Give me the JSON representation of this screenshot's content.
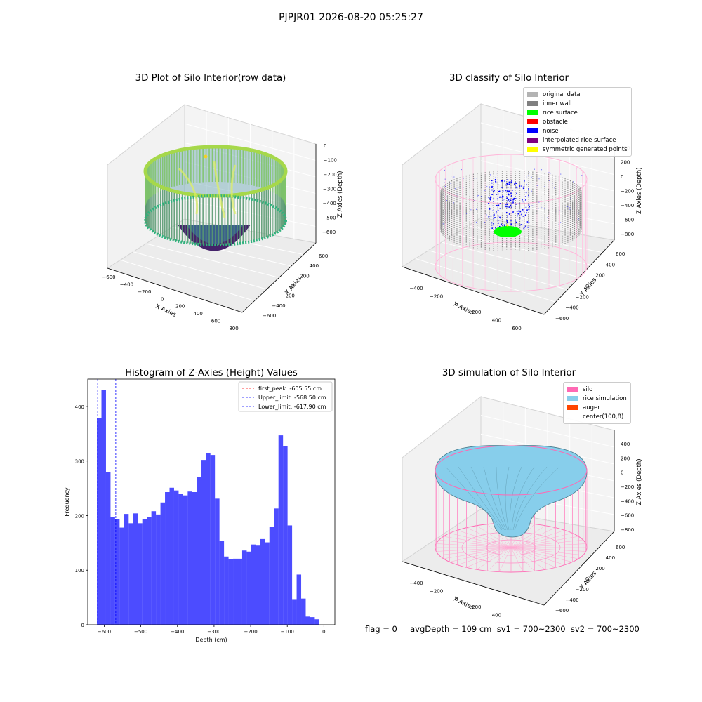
{
  "suptitle": "PJPJR01 2026-08-20 05:25:27",
  "footer": "flag = 0     avgDepth = 109 cm  sv1 = 700~2300  sv2 = 700~2300",
  "panels": {
    "raw": {
      "title": "3D Plot of Silo Interior(row data)",
      "xlabel": "X Axies",
      "ylabel": "Y Axies",
      "zlabel": "Z Axies (Depth)",
      "xticks": [
        "−600",
        "−400",
        "−200",
        "0",
        "200",
        "400",
        "600",
        "800"
      ],
      "yticks": [
        "600",
        "400",
        "200",
        "0",
        "−200",
        "−400",
        "−600"
      ],
      "zticks": [
        "0",
        "−100",
        "−200",
        "−300",
        "−400",
        "−500",
        "−600"
      ]
    },
    "classify": {
      "title": "3D classify of Silo Interior",
      "xlabel": "X Axies",
      "ylabel": "Y Axies",
      "zlabel": "Z Axies (Depth)",
      "xticks": [
        "−400",
        "−200",
        "0",
        "200",
        "400",
        "600"
      ],
      "yticks": [
        "600",
        "400",
        "200",
        "0",
        "−200",
        "−400",
        "−600"
      ],
      "zticks": [
        "400",
        "200",
        "0",
        "−200",
        "−400",
        "−600",
        "−800"
      ],
      "legend": [
        {
          "label": "original data",
          "color": "#b3b3b3"
        },
        {
          "label": "inner wall",
          "color": "#808080"
        },
        {
          "label": "rice surface",
          "color": "#00ff00"
        },
        {
          "label": "obstacle",
          "color": "#ff0000"
        },
        {
          "label": "noise",
          "color": "#0000ff"
        },
        {
          "label": "interpolated rice surface",
          "color": "#800080"
        },
        {
          "label": "symmetric generated points",
          "color": "#ffff00"
        }
      ]
    },
    "simulation": {
      "title": "3D simulation of Silo Interior",
      "xlabel": "X Axies",
      "ylabel": "Y Axies",
      "zlabel": "Z Axies (Depth)",
      "xticks": [
        "−400",
        "−200",
        "0",
        "200",
        "400",
        "600"
      ],
      "yticks": [
        "600",
        "400",
        "200",
        "0",
        "−200",
        "−400",
        "−600"
      ],
      "zticks": [
        "400",
        "200",
        "0",
        "−200",
        "−400",
        "−600",
        "−800"
      ],
      "legend": [
        {
          "label": "silo",
          "color": "#ff69b4"
        },
        {
          "label": "rice simulation",
          "color": "#87ceeb"
        },
        {
          "label": "auger",
          "color": "#ff4500"
        },
        {
          "label": "center(100,8)",
          "color": ""
        }
      ]
    }
  },
  "chart_data": {
    "type": "bar",
    "title": "Histogram of Z-Axies (Height) Values",
    "xlabel": "Depth (cm)",
    "ylabel": "Frequency",
    "xlim": [
      -645,
      30
    ],
    "ylim": [
      0,
      450
    ],
    "xticks": [
      -600,
      -500,
      -400,
      -300,
      -200,
      -100,
      0
    ],
    "yticks": [
      0,
      100,
      200,
      300,
      400
    ],
    "bin_start": -620,
    "bin_width": 12.4,
    "values": [
      378,
      430,
      280,
      198,
      193,
      178,
      203,
      186,
      204,
      186,
      194,
      198,
      208,
      202,
      224,
      243,
      251,
      246,
      240,
      237,
      244,
      243,
      271,
      302,
      315,
      311,
      231,
      154,
      125,
      120,
      121,
      121,
      136,
      134,
      147,
      145,
      157,
      151,
      180,
      213,
      347,
      327,
      182,
      47,
      92,
      48,
      15,
      14,
      10
    ],
    "color": "#0000ff",
    "lines": [
      {
        "label": "first_peak: -605.55 cm",
        "x": -605.55,
        "color": "#ff0000"
      },
      {
        "label": "Upper_limit: -568.50 cm",
        "x": -568.5,
        "color": "#0000ff"
      },
      {
        "label": "Lower_limit: -617.90 cm",
        "x": -617.9,
        "color": "#0000ff"
      }
    ]
  }
}
